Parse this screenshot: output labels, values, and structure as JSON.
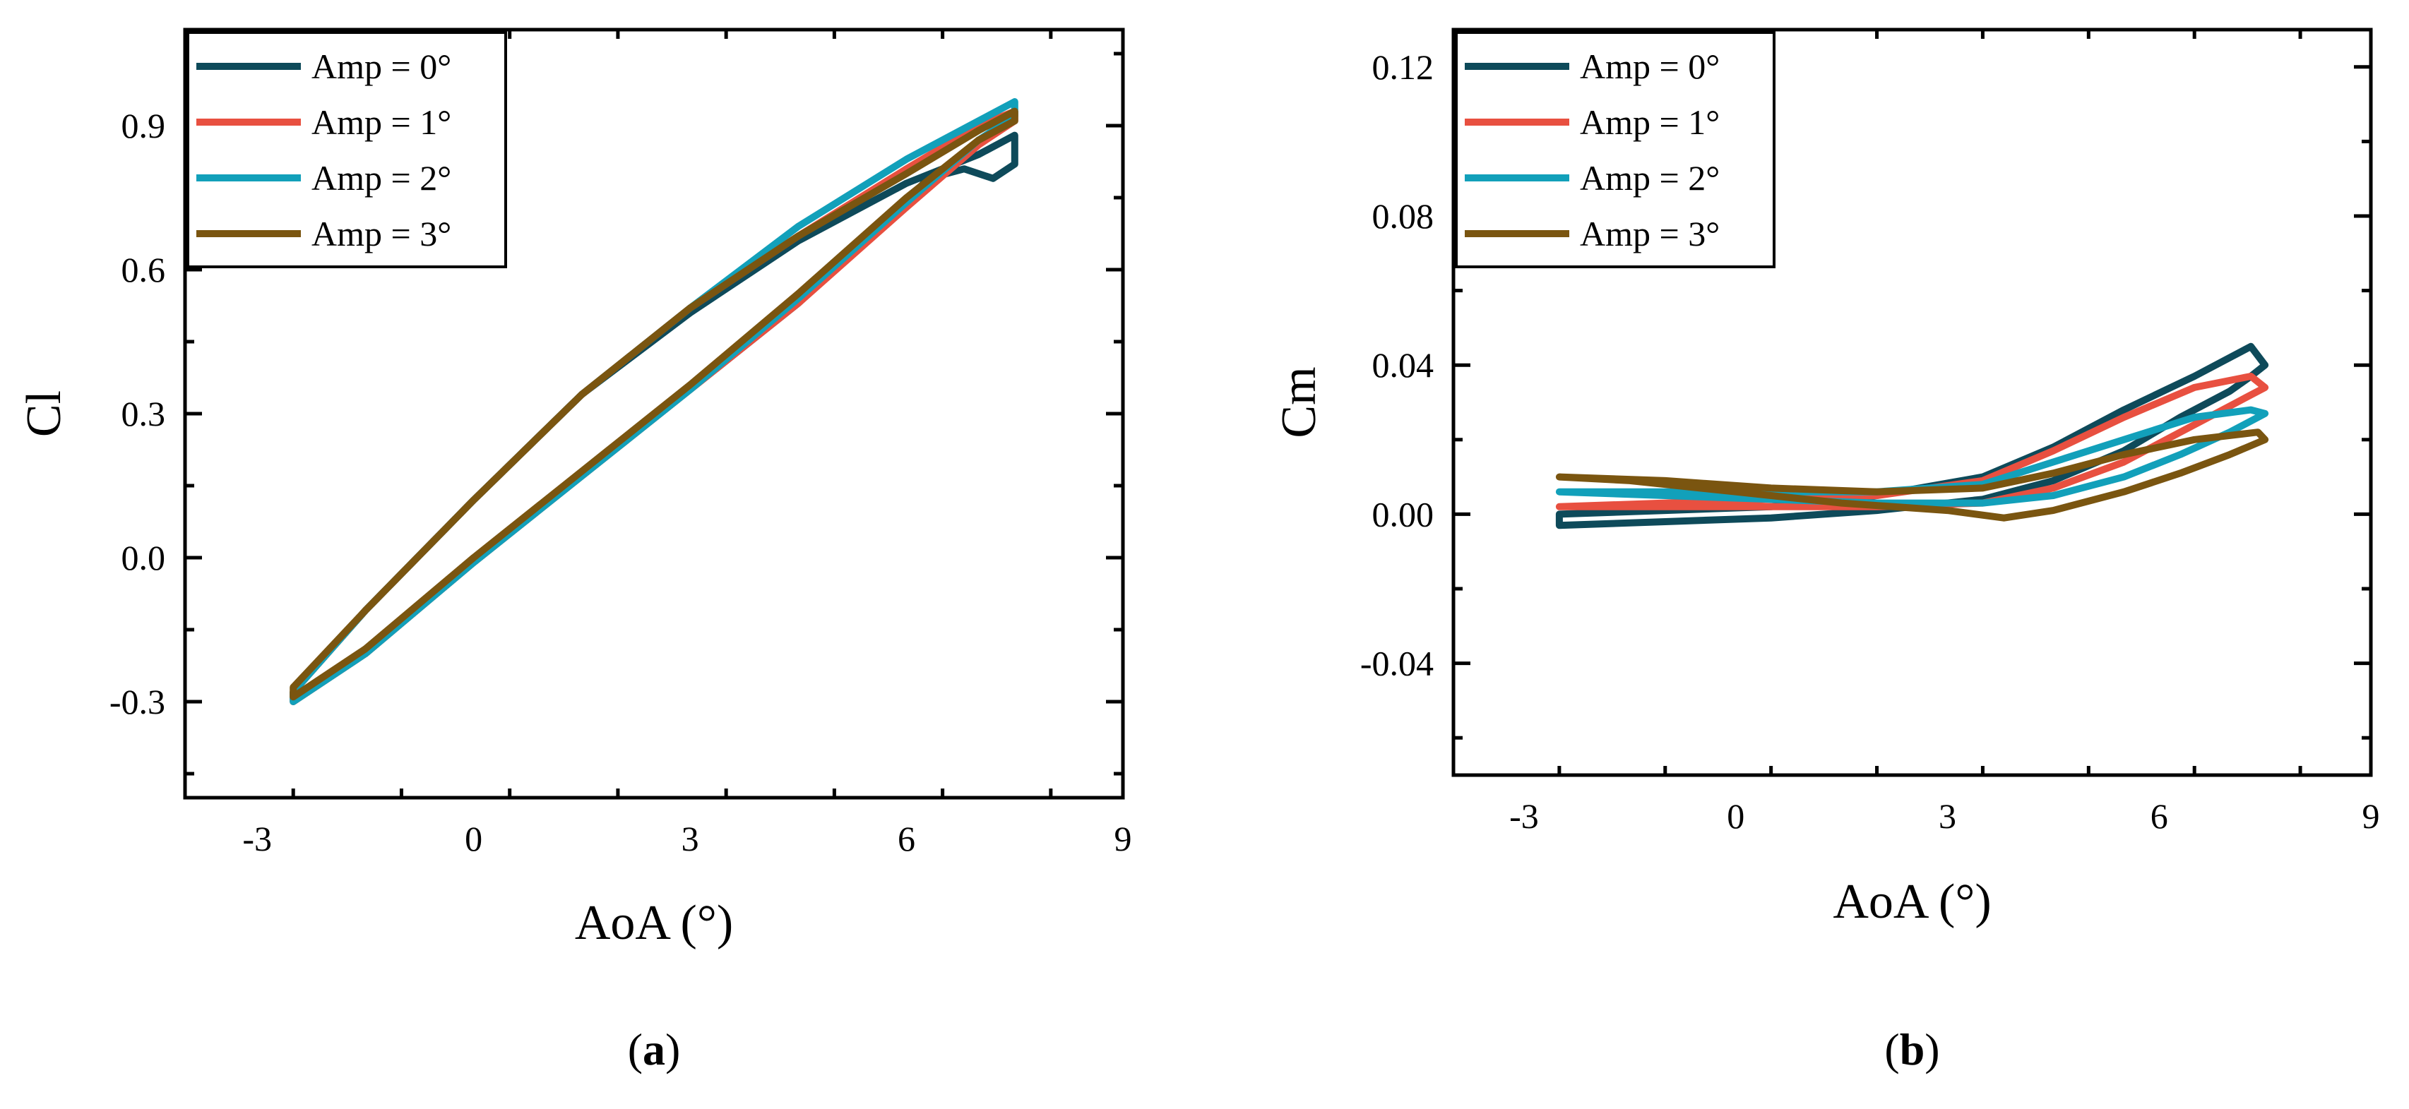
{
  "chart_data": [
    {
      "type": "line",
      "panel_label": "a",
      "title": "",
      "xlabel": "AoA (°)",
      "ylabel": "Cl",
      "xlim": [
        -4,
        9
      ],
      "ylim": [
        -0.5,
        1.1
      ],
      "xticks": [
        -3,
        0,
        3,
        6,
        9
      ],
      "xtick_labels": [
        "-3",
        "0",
        "3",
        "6",
        "9"
      ],
      "yticks": [
        -0.3,
        0.0,
        0.3,
        0.6,
        0.9
      ],
      "ytick_labels": [
        "-0.3",
        "0.0",
        "0.3",
        "0.6",
        "0.9"
      ],
      "grid": false,
      "legend": "top-left",
      "series": [
        {
          "name": "Amp = 0°",
          "color": "#0E4A5A",
          "x": [
            -2.5,
            -1.5,
            0,
            1.5,
            3,
            4.5,
            5.8,
            6.3,
            6.8,
            7.2,
            7.5,
            7.5,
            7.0,
            6.0,
            4.5,
            3.0,
            1.5,
            0,
            -1.5,
            -2.5
          ],
          "y": [
            -0.3,
            -0.2,
            -0.01,
            0.17,
            0.35,
            0.53,
            0.71,
            0.79,
            0.81,
            0.79,
            0.82,
            0.88,
            0.84,
            0.78,
            0.66,
            0.51,
            0.34,
            0.12,
            -0.11,
            -0.28
          ]
        },
        {
          "name": "Amp = 1°",
          "color": "#E85040",
          "x": [
            -2.5,
            -1.5,
            0,
            1.5,
            3,
            4.5,
            6,
            7,
            7.5,
            7.5,
            7.0,
            6.0,
            4.5,
            3.0,
            1.5,
            0,
            -1.5,
            -2.5
          ],
          "y": [
            -0.3,
            -0.2,
            -0.01,
            0.17,
            0.35,
            0.53,
            0.73,
            0.86,
            0.91,
            0.93,
            0.9,
            0.81,
            0.67,
            0.52,
            0.34,
            0.12,
            -0.11,
            -0.28
          ]
        },
        {
          "name": "Amp = 2°",
          "color": "#12A0BA",
          "x": [
            -2.5,
            -1.5,
            0,
            1.5,
            3,
            4.5,
            6,
            7,
            7.5,
            7.5,
            7.0,
            6.0,
            4.5,
            3.0,
            1.5,
            0,
            -1.5,
            -2.5
          ],
          "y": [
            -0.3,
            -0.2,
            -0.01,
            0.17,
            0.35,
            0.54,
            0.74,
            0.87,
            0.92,
            0.95,
            0.91,
            0.83,
            0.69,
            0.52,
            0.34,
            0.12,
            -0.11,
            -0.28
          ]
        },
        {
          "name": "Amp = 3°",
          "color": "#7A5510",
          "x": [
            -2.5,
            -1.5,
            0,
            1.5,
            3,
            4.5,
            6,
            7,
            7.5,
            7.5,
            7.0,
            6.0,
            4.5,
            3.0,
            1.5,
            0,
            -1.5,
            -2.5
          ],
          "y": [
            -0.29,
            -0.19,
            0.0,
            0.18,
            0.36,
            0.55,
            0.75,
            0.87,
            0.91,
            0.93,
            0.89,
            0.8,
            0.67,
            0.52,
            0.34,
            0.12,
            -0.11,
            -0.27
          ]
        }
      ]
    },
    {
      "type": "line",
      "panel_label": "b",
      "title": "",
      "xlabel": "AoA (°)",
      "ylabel": "Cm",
      "xlim": [
        -4,
        9
      ],
      "ylim": [
        -0.07,
        0.13
      ],
      "xticks": [
        -3,
        0,
        3,
        6,
        9
      ],
      "xtick_labels": [
        "-3",
        "0",
        "3",
        "6",
        "9"
      ],
      "yticks": [
        -0.04,
        0.0,
        0.04,
        0.08,
        0.12
      ],
      "ytick_labels": [
        "-0.04",
        "0.00",
        "0.04",
        "0.08",
        "0.12"
      ],
      "grid": false,
      "legend": "top-left",
      "series": [
        {
          "name": "Amp = 0°",
          "color": "#0E4A5A",
          "x": [
            -2.5,
            -1.0,
            0.5,
            2.0,
            3.5,
            4.5,
            5.5,
            6.3,
            7.0,
            7.3,
            7.5,
            7.3,
            6.5,
            5.5,
            4.5,
            3.5,
            2.0,
            0.5,
            -1.0,
            -2.5
          ],
          "y": [
            -0.003,
            -0.002,
            -0.001,
            0.001,
            0.004,
            0.009,
            0.017,
            0.026,
            0.033,
            0.037,
            0.04,
            0.045,
            0.037,
            0.028,
            0.018,
            0.01,
            0.005,
            0.002,
            0.001,
            0.0
          ]
        },
        {
          "name": "Amp = 1°",
          "color": "#E85040",
          "x": [
            -2.5,
            -1.0,
            0.5,
            2.0,
            3.5,
            4.5,
            5.5,
            6.3,
            7.0,
            7.3,
            7.5,
            7.3,
            6.5,
            5.5,
            4.5,
            3.5,
            2.0,
            0.5,
            -1.0,
            -2.5
          ],
          "y": [
            0.002,
            0.002,
            0.002,
            0.002,
            0.003,
            0.007,
            0.014,
            0.022,
            0.029,
            0.032,
            0.034,
            0.037,
            0.034,
            0.026,
            0.017,
            0.009,
            0.005,
            0.004,
            0.003,
            0.002
          ]
        },
        {
          "name": "Amp = 2°",
          "color": "#12A0BA",
          "x": [
            -2.5,
            -1.0,
            0.5,
            2.0,
            3.5,
            4.5,
            5.5,
            6.3,
            7.0,
            7.3,
            7.5,
            7.3,
            6.5,
            5.5,
            4.5,
            3.5,
            2.0,
            0.5,
            -1.0,
            -2.5
          ],
          "y": [
            0.006,
            0.005,
            0.004,
            0.003,
            0.003,
            0.005,
            0.01,
            0.016,
            0.022,
            0.025,
            0.027,
            0.028,
            0.026,
            0.02,
            0.014,
            0.008,
            0.006,
            0.006,
            0.006,
            0.006
          ]
        },
        {
          "name": "Amp = 3°",
          "color": "#7A5510",
          "x": [
            -2.5,
            -1.5,
            0,
            1.5,
            3.0,
            3.8,
            4.5,
            5.5,
            6.3,
            7.0,
            7.5,
            7.4,
            6.5,
            5.5,
            4.5,
            3.5,
            2.0,
            0.5,
            -1.0,
            -2.5
          ],
          "y": [
            0.01,
            0.009,
            0.006,
            0.003,
            0.001,
            -0.001,
            0.001,
            0.006,
            0.011,
            0.016,
            0.02,
            0.022,
            0.02,
            0.016,
            0.011,
            0.007,
            0.006,
            0.007,
            0.009,
            0.01
          ]
        }
      ]
    }
  ]
}
